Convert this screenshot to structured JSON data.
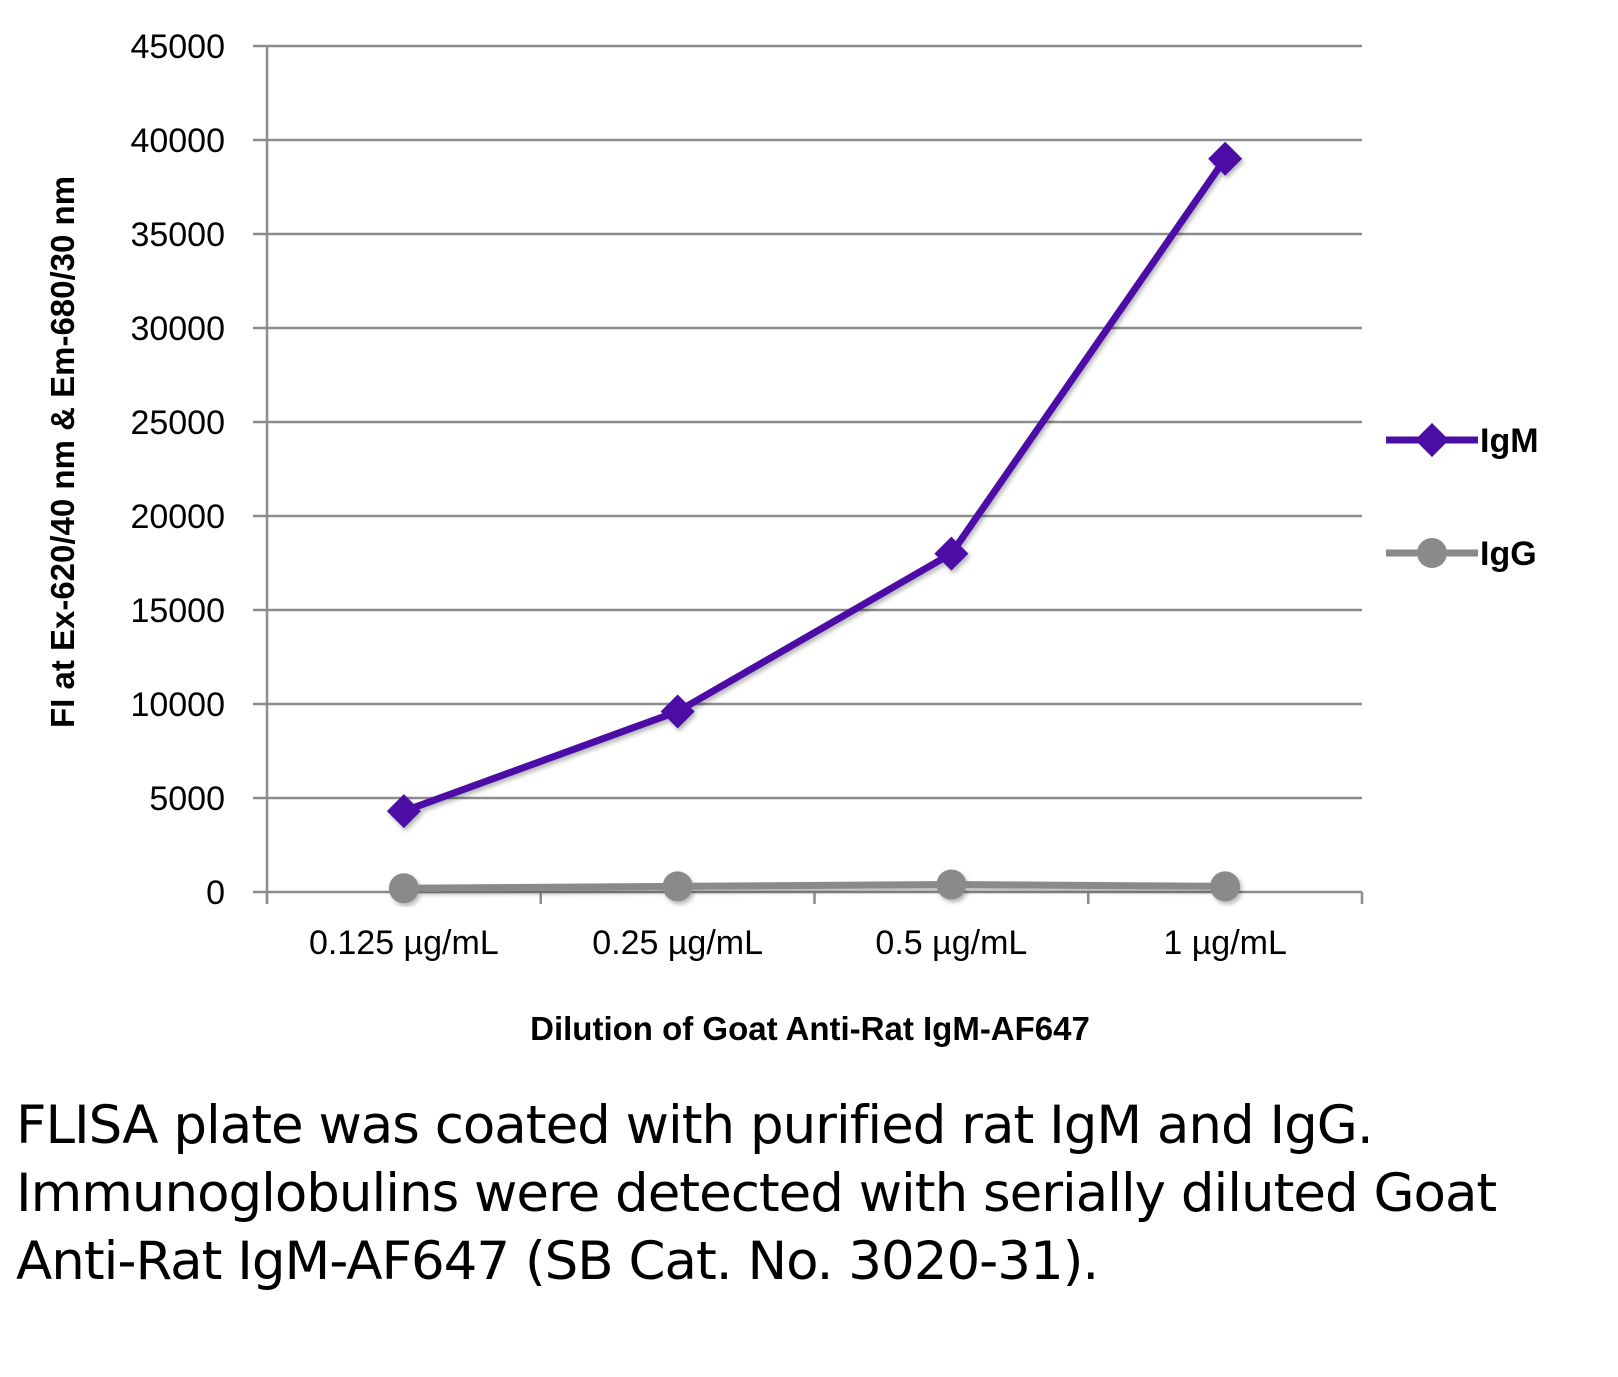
{
  "chart_data": {
    "type": "line",
    "categories": [
      "0.125 µg/mL",
      "0.25 µg/mL",
      "0.5 µg/mL",
      "1 µg/mL"
    ],
    "series": [
      {
        "name": "IgM",
        "values": [
          4300,
          9600,
          18000,
          39000
        ],
        "color": "#4b0fa6",
        "marker": "diamond"
      },
      {
        "name": "IgG",
        "values": [
          200,
          300,
          400,
          300
        ],
        "color": "#8a8a8a",
        "marker": "circle"
      }
    ],
    "yticks": [
      0,
      5000,
      10000,
      15000,
      20000,
      25000,
      30000,
      35000,
      40000,
      45000
    ],
    "ylim": [
      0,
      45000
    ],
    "xlabel": "Dilution of Goat Anti-Rat IgM-AF647",
    "ylabel": "FI at Ex-620/40 nm & Em-680/30 nm",
    "grid": true,
    "legend_position": "right"
  },
  "caption": "FLISA plate was coated with purified rat IgM and IgG.  Immunoglobulins were detected with serially diluted Goat Anti-Rat IgM-AF647 (SB Cat. No. 3020-31).",
  "colors": {
    "grid": "#8c8c8c",
    "axis": "#8c8c8c"
  }
}
